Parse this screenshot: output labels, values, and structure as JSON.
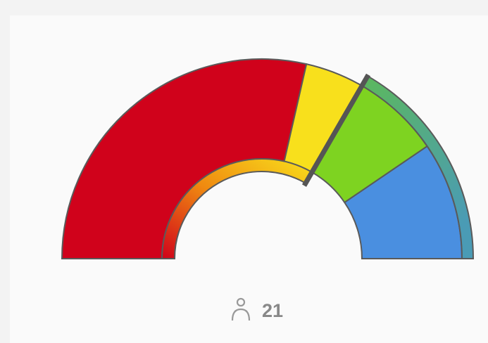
{
  "chart_data": {
    "type": "gauge",
    "values": [
      12,
      2,
      3,
      4
    ],
    "colors": [
      "#d0021b",
      "#f8e01c",
      "#7ed321",
      "#4a8fe0"
    ],
    "count": 21
  }
}
